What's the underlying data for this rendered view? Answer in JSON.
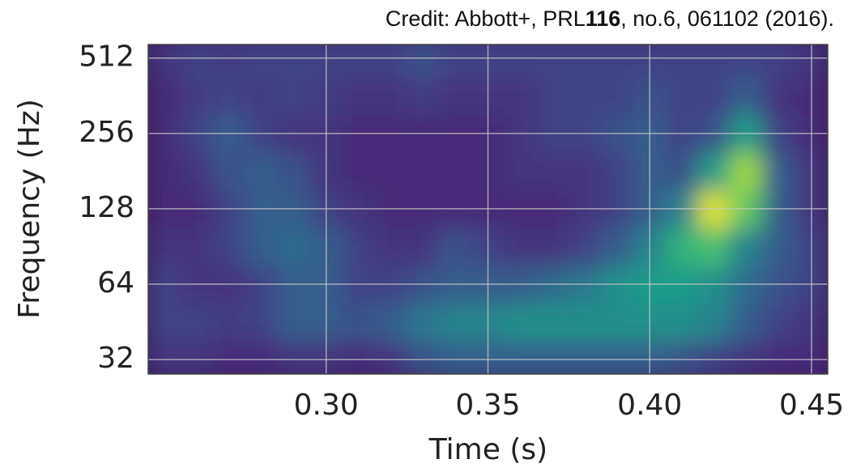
{
  "chart_data": {
    "type": "heatmap",
    "credit": [
      "Credit: Abbott+, PRL",
      "116",
      ", no.6, 061102 (2016)."
    ],
    "xlabel": "Time (s)",
    "ylabel": "Frequency (Hz)",
    "xlim": [
      0.245,
      0.455
    ],
    "xticks": [
      {
        "value": 0.3,
        "label": "0.30"
      },
      0.35,
      {
        "value": 0.4,
        "label": "0.40"
      },
      0.45
    ],
    "ylim": [
      28,
      580
    ],
    "yticks": [
      32,
      64,
      128,
      256,
      512
    ],
    "yscale": "log",
    "grid": true,
    "colormap": "viridis",
    "x": [
      0.25,
      0.26,
      0.27,
      0.28,
      0.29,
      0.3,
      0.31,
      0.32,
      0.33,
      0.34,
      0.35,
      0.36,
      0.37,
      0.38,
      0.39,
      0.4,
      0.41,
      0.42,
      0.43,
      0.44,
      0.45
    ],
    "y": [
      32,
      45,
      64,
      90,
      128,
      181,
      256,
      362,
      512
    ],
    "z": [
      [
        0.15,
        0.15,
        0.12,
        0.12,
        0.15,
        0.15,
        0.12,
        0.15,
        0.25,
        0.3,
        0.3,
        0.3,
        0.3,
        0.3,
        0.3,
        0.3,
        0.25,
        0.2,
        0.15,
        0.12,
        0.12
      ],
      [
        0.2,
        0.2,
        0.18,
        0.2,
        0.3,
        0.3,
        0.25,
        0.3,
        0.4,
        0.45,
        0.45,
        0.5,
        0.5,
        0.5,
        0.5,
        0.5,
        0.5,
        0.45,
        0.3,
        0.2,
        0.15
      ],
      [
        0.2,
        0.15,
        0.15,
        0.2,
        0.3,
        0.3,
        0.2,
        0.2,
        0.25,
        0.3,
        0.3,
        0.3,
        0.35,
        0.4,
        0.5,
        0.55,
        0.55,
        0.5,
        0.35,
        0.25,
        0.2
      ],
      [
        0.15,
        0.15,
        0.2,
        0.3,
        0.35,
        0.3,
        0.2,
        0.15,
        0.15,
        0.25,
        0.2,
        0.15,
        0.15,
        0.2,
        0.3,
        0.45,
        0.65,
        0.7,
        0.45,
        0.3,
        0.2
      ],
      [
        0.12,
        0.12,
        0.2,
        0.3,
        0.3,
        0.2,
        0.15,
        0.12,
        0.12,
        0.12,
        0.12,
        0.12,
        0.12,
        0.15,
        0.2,
        0.3,
        0.45,
        0.95,
        0.75,
        0.3,
        0.15
      ],
      [
        0.12,
        0.15,
        0.25,
        0.3,
        0.25,
        0.15,
        0.12,
        0.12,
        0.12,
        0.12,
        0.12,
        0.15,
        0.15,
        0.15,
        0.2,
        0.3,
        0.25,
        0.55,
        0.85,
        0.3,
        0.15
      ],
      [
        0.12,
        0.2,
        0.3,
        0.2,
        0.15,
        0.15,
        0.12,
        0.12,
        0.12,
        0.12,
        0.12,
        0.15,
        0.2,
        0.2,
        0.25,
        0.3,
        0.2,
        0.25,
        0.55,
        0.2,
        0.12
      ],
      [
        0.12,
        0.18,
        0.2,
        0.18,
        0.2,
        0.18,
        0.15,
        0.15,
        0.18,
        0.15,
        0.15,
        0.15,
        0.2,
        0.2,
        0.2,
        0.25,
        0.2,
        0.2,
        0.3,
        0.15,
        0.12
      ],
      [
        0.15,
        0.2,
        0.18,
        0.2,
        0.2,
        0.2,
        0.2,
        0.2,
        0.25,
        0.2,
        0.2,
        0.2,
        0.2,
        0.2,
        0.2,
        0.2,
        0.2,
        0.2,
        0.2,
        0.2,
        0.15
      ]
    ]
  }
}
